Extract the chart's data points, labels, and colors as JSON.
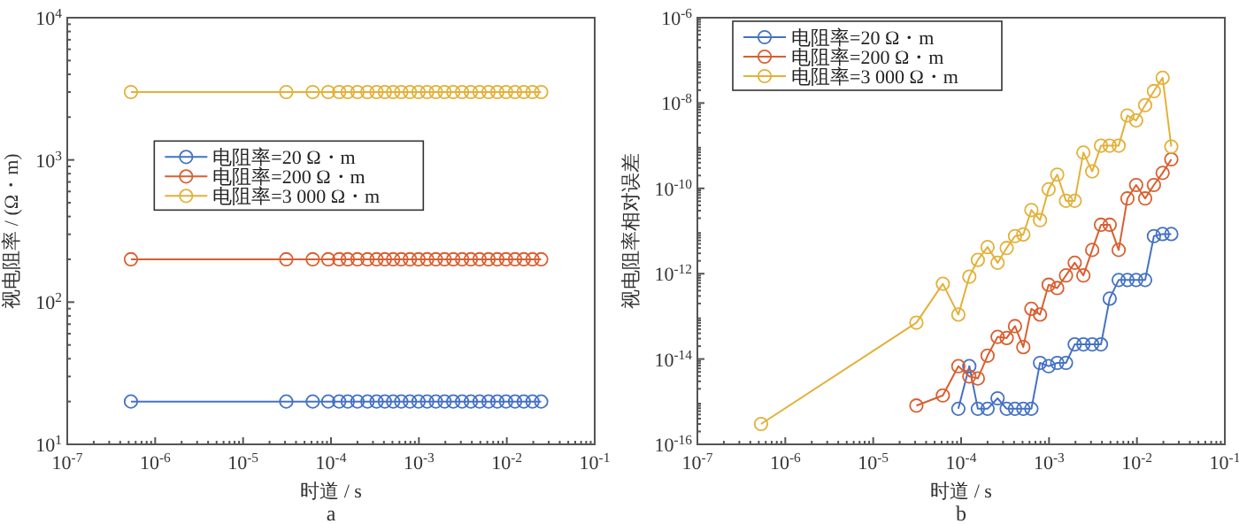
{
  "chart_data": [
    {
      "type": "line",
      "xlabel": "时道 / s",
      "ylabel": "视电阻率 / (Ω・m)",
      "annotations": [
        "a"
      ],
      "log": "xy",
      "marker": "circle",
      "line_style": "solid",
      "legend": "center",
      "grid": false,
      "xlim": [
        1e-07,
        0.1
      ],
      "xticks": [
        {
          "value": 1e-07,
          "label": "10$^{-7}$"
        },
        {
          "value": 1e-06,
          "label": "10$^{-6}$"
        },
        {
          "value": 1e-05,
          "label": "10$^{-5}$"
        },
        {
          "value": 0.0001,
          "label": "10$^{-4}$"
        },
        {
          "value": 0.001,
          "label": "10$^{-3}$"
        },
        {
          "value": 0.01,
          "label": "10$^{-2}$"
        },
        {
          "value": 0.1,
          "label": "10$^{-1}$"
        }
      ],
      "ylim": [
        10,
        10000
      ],
      "yticks": [
        {
          "value": 10,
          "label": "10$^{1}$"
        },
        {
          "value": 100,
          "label": "10$^{2}$"
        },
        {
          "value": 1000,
          "label": "10$^{3}$"
        },
        {
          "value": 10000,
          "label": "10$^{4}$"
        }
      ],
      "x": [
        5.3e-07,
        3.1e-05,
        6.2e-05,
        9.3e-05,
        0.000124,
        0.000155,
        0.0002,
        0.00026,
        0.00033,
        0.00041,
        0.00051,
        0.00063,
        0.00079,
        0.00099,
        0.00124,
        0.00156,
        0.00196,
        0.00246,
        0.0031,
        0.0039,
        0.0049,
        0.0062,
        0.0078,
        0.0098,
        0.0124,
        0.0156,
        0.0196,
        0.0246
      ],
      "series": [
        {
          "name": "电阻率=20 Ω・m",
          "color": "#4472c4",
          "values": [
            20,
            20,
            20,
            20,
            20,
            20,
            20,
            20,
            20,
            20,
            20,
            20,
            20,
            20,
            20,
            20,
            20,
            20,
            20,
            20,
            20,
            20,
            20,
            20,
            20,
            20,
            20,
            20
          ]
        },
        {
          "name": "电阻率=200 Ω・m",
          "color": "#d95f30",
          "values": [
            200,
            200,
            200,
            200,
            200,
            200,
            200,
            200,
            200,
            200,
            200,
            200,
            200,
            200,
            200,
            200,
            200,
            200,
            200,
            200,
            200,
            200,
            200,
            200,
            200,
            200,
            200,
            200
          ]
        },
        {
          "name": "电阻率=3 000 Ω・m",
          "color": "#e3b13a",
          "values": [
            3000,
            3000,
            3000,
            3000,
            3000,
            3000,
            3000,
            3000,
            3000,
            3000,
            3000,
            3000,
            3000,
            3000,
            3000,
            3000,
            3000,
            3000,
            3000,
            3000,
            3000,
            3000,
            3000,
            3000,
            3000,
            3000,
            3000,
            3000
          ]
        }
      ]
    },
    {
      "type": "line",
      "xlabel": "时道 / s",
      "ylabel": "视电阻率相对误差",
      "annotations": [
        "b"
      ],
      "log": "xy",
      "marker": "circle",
      "line_style": "solid",
      "legend": "top left",
      "grid": false,
      "xlim": [
        1e-07,
        0.1
      ],
      "xticks": [
        {
          "value": 1e-07,
          "label": "10$^{-7}$"
        },
        {
          "value": 1e-06,
          "label": "10$^{-6}$"
        },
        {
          "value": 1e-05,
          "label": "10$^{-5}$"
        },
        {
          "value": 0.0001,
          "label": "10$^{-4}$"
        },
        {
          "value": 0.001,
          "label": "10$^{-3}$"
        },
        {
          "value": 0.01,
          "label": "10$^{-2}$"
        },
        {
          "value": 0.1,
          "label": "10$^{-1}$"
        }
      ],
      "ylim": [
        1e-16,
        1e-06
      ],
      "yticks": [
        {
          "value": 1e-16,
          "label": "10$^{-16}$"
        },
        {
          "value": 1e-14,
          "label": "10$^{-14}$"
        },
        {
          "value": 1e-12,
          "label": "10$^{-12}$"
        },
        {
          "value": 1e-10,
          "label": "10$^{-10}$"
        },
        {
          "value": 1e-08,
          "label": "10$^{-8}$"
        },
        {
          "value": 1e-06,
          "label": "10$^{-6}$"
        }
      ],
      "series": [
        {
          "name": "电阻率=20 Ω・m",
          "color": "#4472c4",
          "x": [
            9.3e-05,
            0.000124,
            0.000155,
            0.0002,
            0.00026,
            0.00033,
            0.00041,
            0.00051,
            0.00063,
            0.00079,
            0.00099,
            0.00124,
            0.00156,
            0.00196,
            0.00246,
            0.0031,
            0.0039,
            0.0049,
            0.0062,
            0.0078,
            0.0098,
            0.0124,
            0.0156,
            0.0196,
            0.0246
          ],
          "values": [
            6.8e-16,
            6.8e-15,
            6.8e-16,
            6.8e-16,
            1.2e-15,
            6.8e-16,
            6.8e-16,
            6.8e-16,
            6.8e-16,
            8.1e-15,
            6.8e-15,
            8.1e-15,
            8.1e-15,
            2.2e-14,
            2.2e-14,
            2.2e-14,
            2.2e-14,
            2.6e-13,
            7.1e-13,
            7.1e-13,
            7.1e-13,
            7.1e-13,
            7.6e-12,
            8.5e-12,
            8.5e-12
          ]
        },
        {
          "name": "电阻率=200 Ω・m",
          "color": "#d95f30",
          "x": [
            3.1e-05,
            6.2e-05,
            9.3e-05,
            0.000124,
            0.000155,
            0.0002,
            0.00026,
            0.00033,
            0.00041,
            0.00051,
            0.00063,
            0.00079,
            0.00099,
            0.00124,
            0.00156,
            0.00196,
            0.00246,
            0.0031,
            0.0039,
            0.0049,
            0.0062,
            0.0078,
            0.0098,
            0.0124,
            0.0156,
            0.0196,
            0.0246
          ],
          "values": [
            8.1e-16,
            1.4e-15,
            6.8e-15,
            3.9e-15,
            3.5e-15,
            1.2e-14,
            3.3e-14,
            3.1e-14,
            5.9e-14,
            1.9e-14,
            1.5e-13,
            1.1e-13,
            5.5e-13,
            4.6e-13,
            9.1e-13,
            1.8e-12,
            9.1e-13,
            3.6e-12,
            1.4e-11,
            1.4e-11,
            3.6e-12,
            5.8e-11,
            1.2e-10,
            5.8e-11,
            1.2e-10,
            2.3e-10,
            4.8e-10
          ]
        },
        {
          "name": "电阻率=3 000 Ω・m",
          "color": "#e3b13a",
          "x": [
            5.3e-07,
            3.1e-05,
            6.2e-05,
            9.3e-05,
            0.000124,
            0.000155,
            0.0002,
            0.00026,
            0.00033,
            0.00041,
            0.00051,
            0.00063,
            0.00079,
            0.00099,
            0.00124,
            0.00156,
            0.00196,
            0.00246,
            0.0031,
            0.0039,
            0.0049,
            0.0062,
            0.0078,
            0.0098,
            0.0124,
            0.0156,
            0.0196,
            0.0246
          ],
          "values": [
            3e-16,
            7.1e-14,
            5.8e-13,
            1.1e-13,
            8.5e-13,
            2.1e-12,
            4.2e-12,
            1.8e-12,
            4e-12,
            7.6e-12,
            8.3e-12,
            3.1e-11,
            1.8e-11,
            9.5e-11,
            2.1e-10,
            5.1e-11,
            5.1e-11,
            6.9e-10,
            2.5e-10,
            1e-09,
            1e-09,
            1e-09,
            5.1e-09,
            3.9e-09,
            8.9e-09,
            1.9e-08,
            3.9e-08,
            9.5e-10
          ]
        }
      ]
    }
  ]
}
